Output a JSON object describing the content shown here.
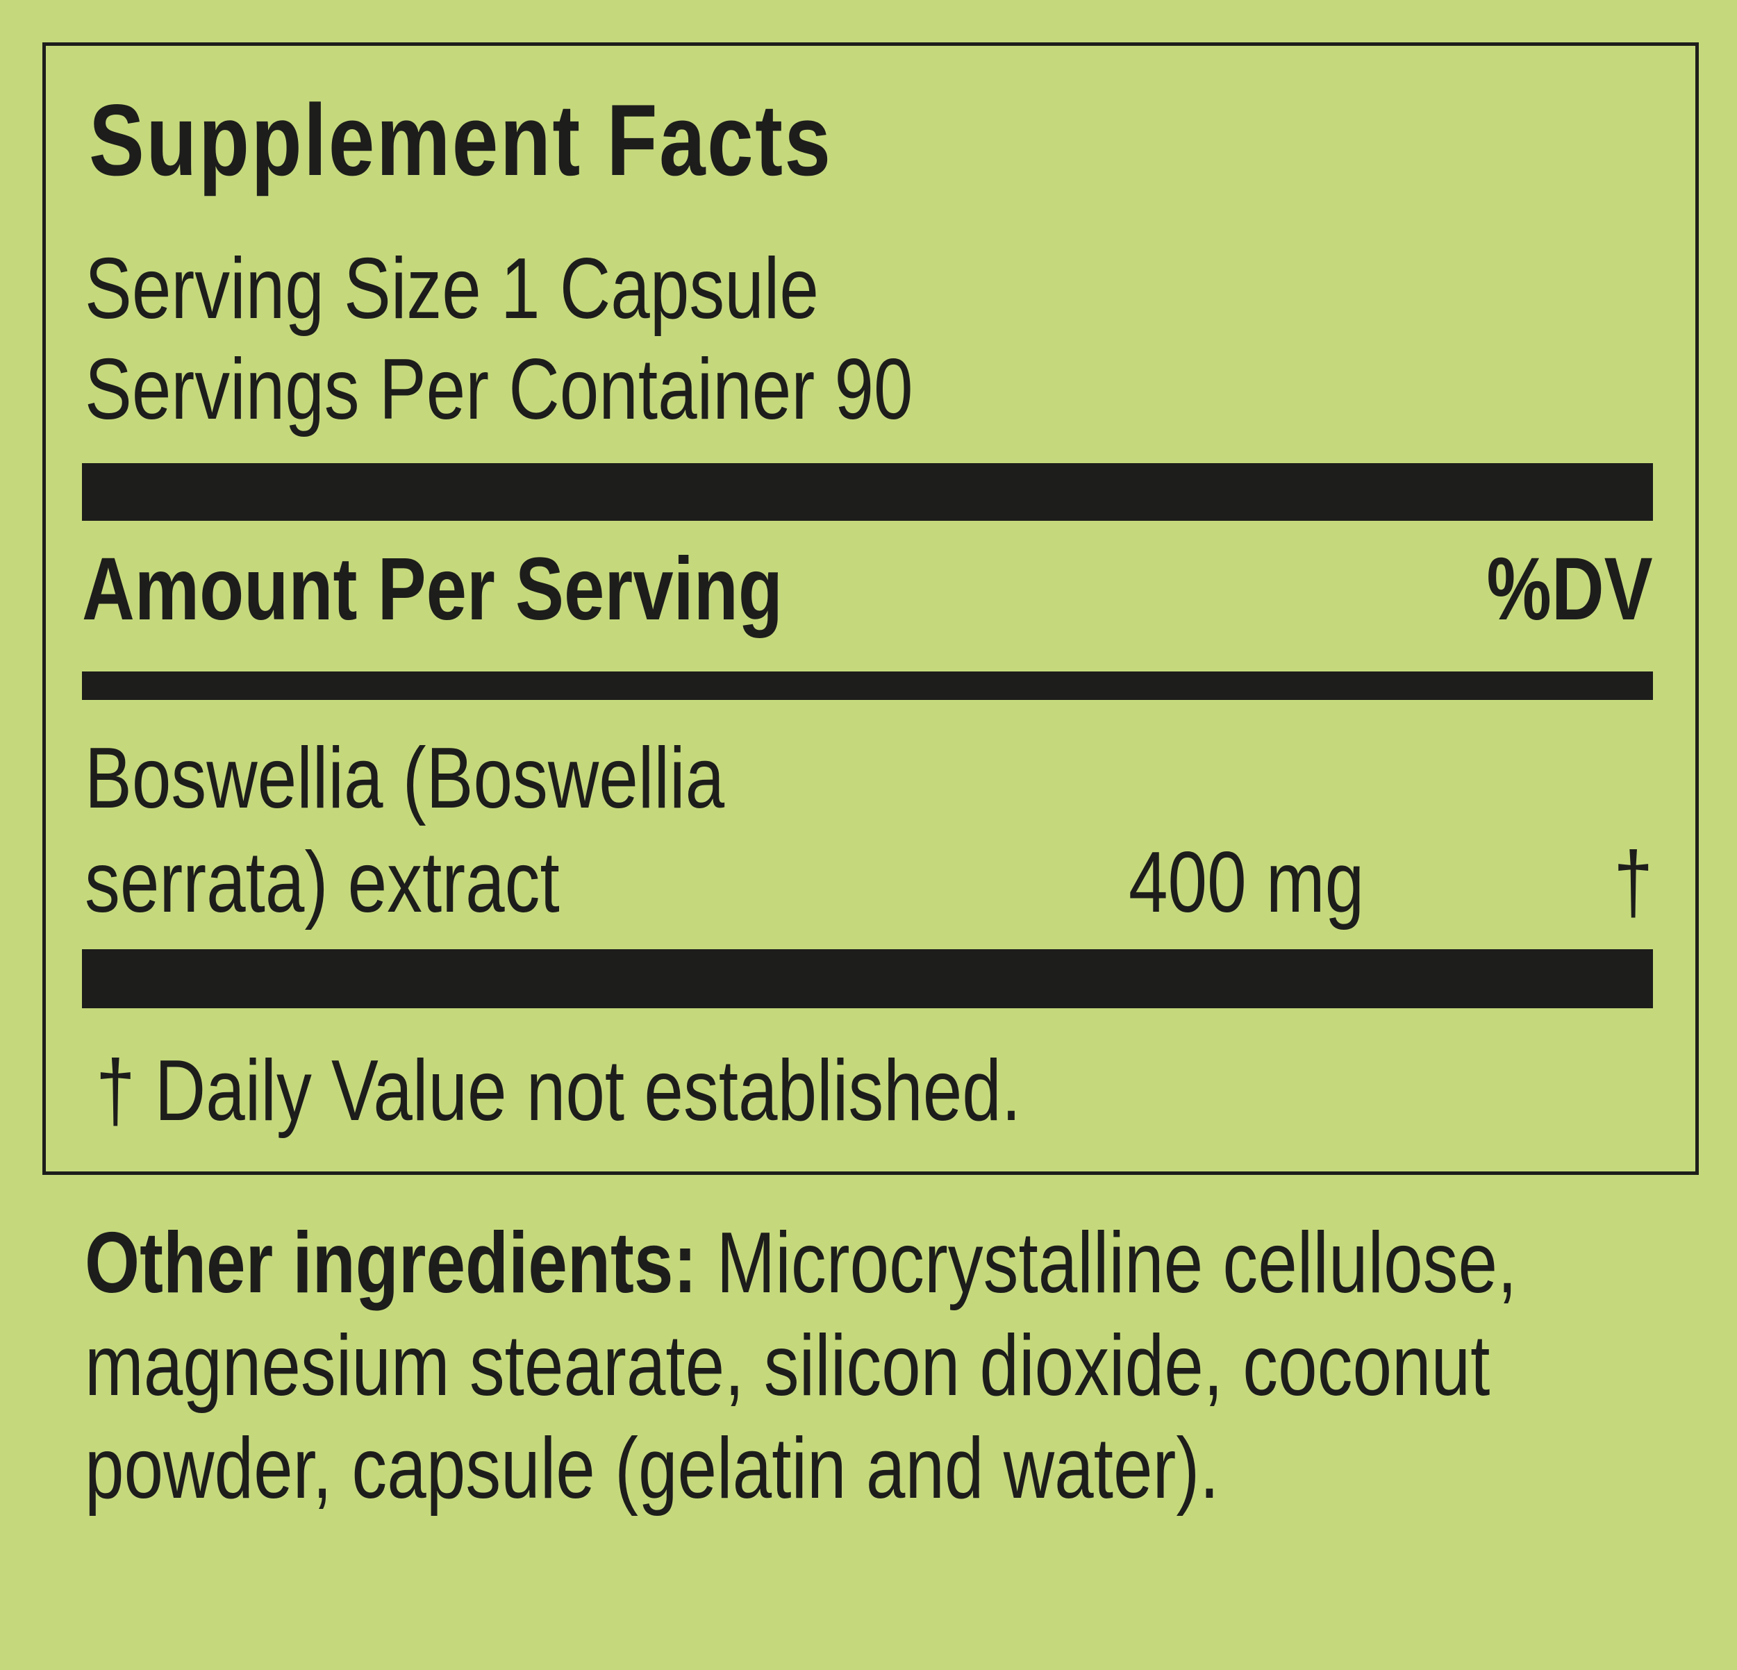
{
  "title": "Supplement Facts",
  "serving_size": "Serving Size 1 Capsule",
  "servings_per_container": "Servings Per Container 90",
  "header": {
    "amount_label": "Amount Per Serving",
    "dv_label": "%DV"
  },
  "ingredients": [
    {
      "name_line1": "Boswellia (Boswellia",
      "name_line2": "serrata) extract",
      "amount": "400 mg",
      "dv": "†"
    }
  ],
  "footnote": "† Daily Value not established.",
  "other_ingredients": {
    "label": "Other ingredients:",
    "text": " Microcrystalline cellulose, magnesium stearate, silicon dioxide, coconut powder, capsule (gelatin and water)."
  },
  "colors": {
    "background": "#c5d97c",
    "ink": "#1d1d1b"
  }
}
